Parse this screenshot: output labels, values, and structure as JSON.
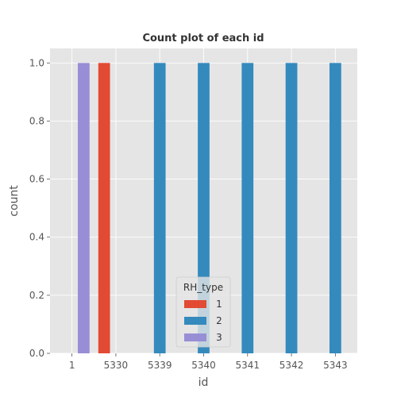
{
  "chart_data": {
    "type": "bar",
    "title": "Count plot of each id",
    "xlabel": "id",
    "ylabel": "count",
    "categories": [
      "1",
      "5330",
      "5339",
      "5340",
      "5341",
      "5342",
      "5343"
    ],
    "ylim": [
      0,
      1.05
    ],
    "yticks": [
      "0.0",
      "0.2",
      "0.4",
      "0.6",
      "0.8",
      "1.0"
    ],
    "ytick_values": [
      0,
      0.2,
      0.4,
      0.6,
      0.8,
      1.0
    ],
    "grid": true,
    "legend": {
      "title": "RH_type",
      "placement": "lower center"
    },
    "series": [
      {
        "name": "1",
        "color": "#E24A33",
        "values": [
          0,
          1,
          0,
          0,
          0,
          0,
          0
        ]
      },
      {
        "name": "2",
        "color": "#348ABD",
        "values": [
          0,
          0,
          1,
          1,
          1,
          1,
          1
        ]
      },
      {
        "name": "3",
        "color": "#988ED5",
        "values": [
          1,
          0,
          0,
          0,
          0,
          0,
          0
        ]
      }
    ],
    "background_color": "#E5E5E5",
    "grid_color": "#FFFFFF"
  }
}
